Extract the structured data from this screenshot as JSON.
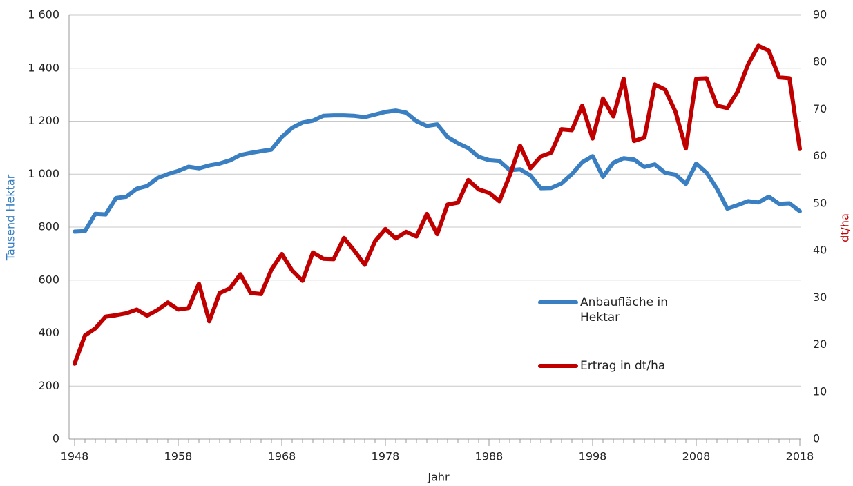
{
  "chart_data": {
    "type": "line",
    "x": [
      1948,
      1949,
      1950,
      1951,
      1952,
      1953,
      1954,
      1955,
      1956,
      1957,
      1958,
      1959,
      1960,
      1961,
      1962,
      1963,
      1964,
      1965,
      1966,
      1967,
      1968,
      1969,
      1970,
      1971,
      1972,
      1973,
      1974,
      1975,
      1976,
      1977,
      1978,
      1979,
      1980,
      1981,
      1982,
      1983,
      1984,
      1985,
      1986,
      1987,
      1988,
      1989,
      1990,
      1991,
      1992,
      1993,
      1994,
      1995,
      1996,
      1997,
      1998,
      1999,
      2000,
      2001,
      2002,
      2003,
      2004,
      2005,
      2006,
      2007,
      2008,
      2009,
      2010,
      2011,
      2012,
      2013,
      2014,
      2015,
      2016,
      2017,
      2018
    ],
    "series": [
      {
        "name": "Anbaufläche in Hektar",
        "color": "#3a7fc1",
        "axis": "y",
        "values": [
          783,
          785,
          850,
          848,
          910,
          915,
          945,
          955,
          985,
          1000,
          1012,
          1028,
          1022,
          1033,
          1040,
          1052,
          1072,
          1080,
          1087,
          1093,
          1140,
          1175,
          1195,
          1202,
          1220,
          1222,
          1222,
          1220,
          1215,
          1225,
          1235,
          1240,
          1232,
          1200,
          1182,
          1188,
          1140,
          1117,
          1098,
          1065,
          1053,
          1050,
          1015,
          1018,
          995,
          947,
          948,
          965,
          1000,
          1045,
          1068,
          990,
          1043,
          1060,
          1055,
          1027,
          1037,
          1005,
          998,
          963,
          1040,
          1005,
          945,
          870,
          883,
          898,
          893,
          915,
          888,
          890,
          860
        ]
      },
      {
        "name": "Ertrag in dt/ha",
        "color": "#c00000",
        "axis": "y2",
        "values": [
          16,
          22,
          23.5,
          26,
          26.3,
          26.7,
          27.5,
          26.2,
          27.4,
          29,
          27.5,
          27.8,
          33,
          25,
          31,
          32,
          35,
          31,
          30.8,
          36,
          39.3,
          35.8,
          33.6,
          39.6,
          38.3,
          38.2,
          42.7,
          40,
          37,
          42,
          44.6,
          42.6,
          44,
          43,
          47.8,
          43.5,
          49.8,
          50.2,
          55,
          53,
          52.3,
          50.5,
          56,
          62.3,
          57.5,
          60,
          60.8,
          65.8,
          65.6,
          70.8,
          63.8,
          72.3,
          68.5,
          76.5,
          63.3,
          64,
          75.3,
          74.2,
          69.5,
          61.7,
          76.5,
          76.6,
          70.8,
          70.3,
          73.8,
          79.5,
          83.5,
          82.5,
          76.8,
          76.6,
          61.6
        ]
      }
    ],
    "x_label": "Jahr",
    "y_label": "Tausend Hektar",
    "y2_label": "dt/ha",
    "xlim": [
      1948,
      2018
    ],
    "xticks": [
      1948,
      1958,
      1968,
      1978,
      1988,
      1998,
      2008,
      2018
    ],
    "ylim": [
      0,
      1600
    ],
    "yticks": [
      0,
      200,
      400,
      600,
      800,
      {
        "value": 1000,
        "label": "1 000"
      },
      {
        "value": 1200,
        "label": "1 200"
      },
      {
        "value": 1400,
        "label": "1 400"
      },
      {
        "value": 1600,
        "label": "1 600"
      }
    ],
    "y2lim": [
      0,
      90
    ],
    "y2ticks": [
      0,
      10,
      20,
      30,
      40,
      50,
      60,
      70,
      80,
      90
    ],
    "grid": true,
    "legend": "right"
  }
}
